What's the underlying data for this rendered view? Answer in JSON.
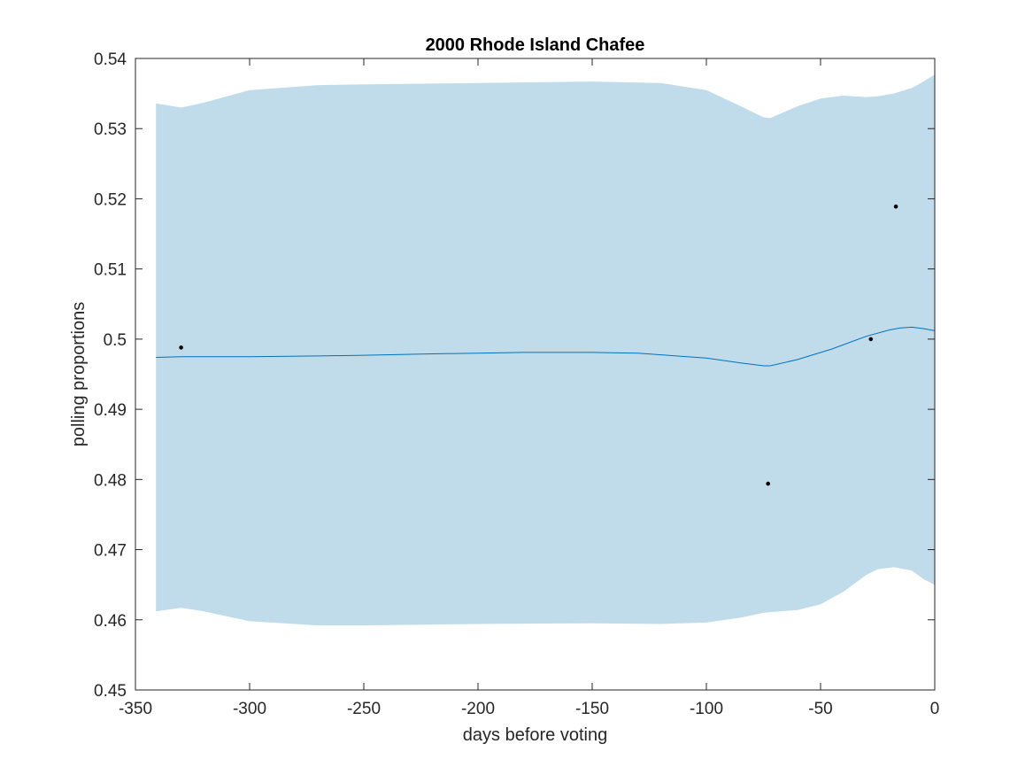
{
  "chart_data": {
    "type": "line",
    "title": "2000 Rhode Island Chafee",
    "xlabel": "days before voting",
    "ylabel": "polling proportions",
    "xlim": [
      -350,
      0
    ],
    "ylim": [
      0.45,
      0.54
    ],
    "xticks": [
      -350,
      -300,
      -250,
      -200,
      -150,
      -100,
      -50,
      0
    ],
    "yticks": [
      0.45,
      0.46,
      0.47,
      0.48,
      0.49,
      0.5,
      0.51,
      0.52,
      0.53,
      0.54
    ],
    "xtick_labels": [
      "-350",
      "-300",
      "-250",
      "-200",
      "-150",
      "-100",
      "-50",
      "0"
    ],
    "ytick_labels": [
      "0.45",
      "0.46",
      "0.47",
      "0.48",
      "0.49",
      "0.5",
      "0.51",
      "0.52",
      "0.53",
      "0.54"
    ],
    "grid": false,
    "colors": {
      "band": "#c0dcea",
      "line": "#0072bd",
      "points": "#000000",
      "axes": "#262626"
    },
    "series": [
      {
        "type": "line",
        "x": [
          -341,
          -330,
          -300,
          -270,
          -250,
          -220,
          -200,
          -180,
          -150,
          -130,
          -100,
          -85,
          -75,
          -72,
          -60,
          -45,
          -30,
          -20,
          -15,
          -10,
          -5,
          0
        ],
        "values": [
          0.4974,
          0.4975,
          0.4975,
          0.4976,
          0.4977,
          0.4979,
          0.498,
          0.4981,
          0.4981,
          0.498,
          0.4973,
          0.4966,
          0.4962,
          0.4962,
          0.4971,
          0.4986,
          0.5004,
          0.5013,
          0.5016,
          0.5017,
          0.5015,
          0.5012
        ]
      },
      {
        "type": "band",
        "x": [
          -341,
          -330,
          -320,
          -300,
          -270,
          -250,
          -200,
          -150,
          -120,
          -100,
          -85,
          -75,
          -72,
          -60,
          -50,
          -40,
          -30,
          -25,
          -18,
          -10,
          -5,
          0
        ],
        "upper": [
          0.5336,
          0.533,
          0.5337,
          0.5355,
          0.5362,
          0.5363,
          0.5365,
          0.5367,
          0.5365,
          0.5355,
          0.5332,
          0.5316,
          0.5315,
          0.5332,
          0.5343,
          0.5347,
          0.5345,
          0.5346,
          0.535,
          0.5358,
          0.5367,
          0.5377
        ],
        "lower": [
          0.4612,
          0.4617,
          0.4612,
          0.4598,
          0.4592,
          0.4592,
          0.4594,
          0.4595,
          0.4594,
          0.4596,
          0.4603,
          0.461,
          0.4611,
          0.4614,
          0.4622,
          0.464,
          0.4664,
          0.4672,
          0.4675,
          0.467,
          0.4658,
          0.465
        ]
      },
      {
        "type": "scatter",
        "x": [
          -330,
          -73,
          -28,
          -17
        ],
        "values": [
          0.4988,
          0.4794,
          0.5,
          0.5189
        ]
      }
    ]
  }
}
